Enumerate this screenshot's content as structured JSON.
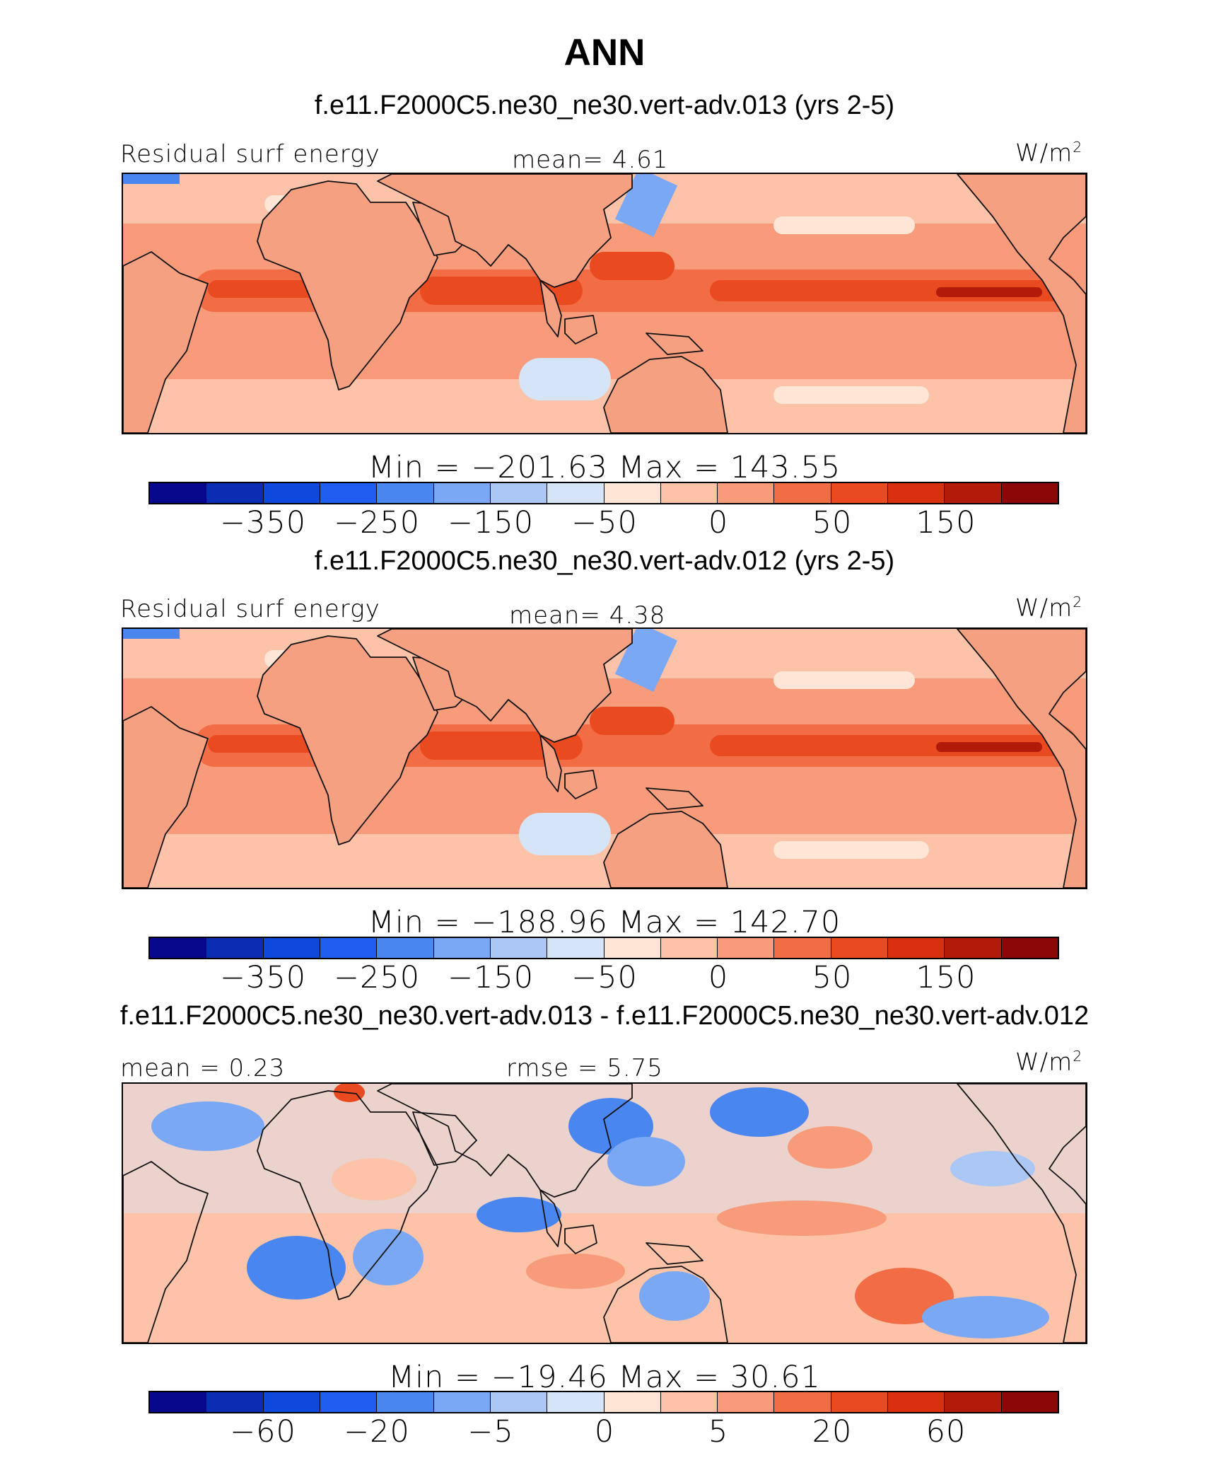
{
  "page_title": "ANN",
  "palette": [
    "#08088c",
    "#0a2db4",
    "#0e48dc",
    "#1f5ef0",
    "#4a86ef",
    "#7aa8f4",
    "#aac7f6",
    "#d6e4f8",
    "#fde6d6",
    "#fcc3a8",
    "#f79b7a",
    "#f26c45",
    "#ea4a1f",
    "#d83010",
    "#b21a0a",
    "#8c0707"
  ],
  "continent_color": "#f5a080",
  "coast_color": "#111111",
  "panels": [
    {
      "case_title": "f.e11.F2000C5.ne30_ne30.vert-adv.013 (yrs 2-5)",
      "left_label": "Residual surf energy",
      "center_label": "mean=   4.61",
      "units": "W/m",
      "units_sup": "2",
      "minmax": "Min  =  −201.63  Max  =  143.55",
      "ticks": [
        "−350",
        "−250",
        "−150",
        "−50",
        "0",
        "50",
        "150"
      ],
      "kind": "field"
    },
    {
      "case_title": "f.e11.F2000C5.ne30_ne30.vert-adv.012 (yrs 2-5)",
      "left_label": "Residual surf energy",
      "center_label": "mean=   4.38",
      "units": "W/m",
      "units_sup": "2",
      "minmax": "Min  =  −188.96  Max  =  142.70",
      "ticks": [
        "−350",
        "−250",
        "−150",
        "−50",
        "0",
        "50",
        "150"
      ],
      "kind": "field"
    },
    {
      "case_title": "f.e11.F2000C5.ne30_ne30.vert-adv.013 - f.e11.F2000C5.ne30_ne30.vert-adv.012",
      "left_label": "mean  =    0.23",
      "center_label": "rmse  =    5.75",
      "units": "W/m",
      "units_sup": "2",
      "minmax": "Min  =  −19.46  Max  =   30.61",
      "ticks": [
        "−60",
        "−20",
        "−5",
        "0",
        "5",
        "20",
        "60"
      ],
      "kind": "diff"
    }
  ]
}
